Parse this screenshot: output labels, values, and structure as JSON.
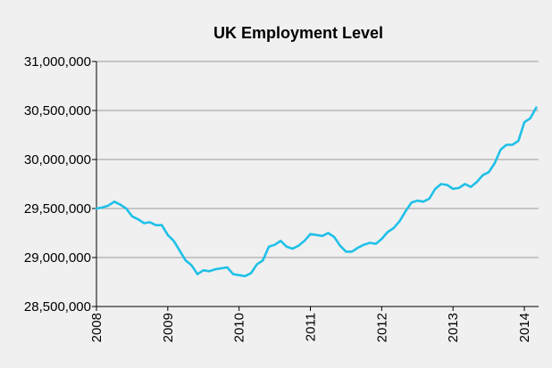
{
  "chart_data": {
    "type": "line",
    "title": "UK Employment Level",
    "xlabel": "",
    "ylabel": "",
    "x_ticks": [
      "2008",
      "2009",
      "2010",
      "2011",
      "2012",
      "2013",
      "2014"
    ],
    "y_ticks": [
      "28,500,000",
      "29,000,000",
      "29,500,000",
      "30,000,000",
      "30,500,000",
      "31,000,000"
    ],
    "xlim": [
      2008.0,
      2014.2
    ],
    "ylim": [
      28500000,
      31000000
    ],
    "grid": true,
    "legend": "none",
    "series_color": "#1fc0e8",
    "series": [
      {
        "x": [
          2008.0,
          2008.083,
          2008.167,
          2008.25,
          2008.333,
          2008.417,
          2008.5,
          2008.583,
          2008.667,
          2008.75,
          2008.833,
          2008.917,
          2009.0,
          2009.083,
          2009.167,
          2009.25,
          2009.333,
          2009.417,
          2009.5,
          2009.583,
          2009.667,
          2009.75,
          2009.833,
          2009.917,
          2010.0,
          2010.083,
          2010.167,
          2010.25,
          2010.333,
          2010.417,
          2010.5,
          2010.583,
          2010.667,
          2010.75,
          2010.833,
          2010.917,
          2011.0,
          2011.083,
          2011.167,
          2011.25,
          2011.333,
          2011.417,
          2011.5,
          2011.583,
          2011.667,
          2011.75,
          2011.833,
          2011.917,
          2012.0,
          2012.083,
          2012.167,
          2012.25,
          2012.333,
          2012.417,
          2012.5,
          2012.583,
          2012.667,
          2012.75,
          2012.833,
          2012.917,
          2013.0,
          2013.083,
          2013.167,
          2013.25,
          2013.333,
          2013.417,
          2013.5,
          2013.583,
          2013.667,
          2013.75,
          2013.833,
          2013.917,
          2014.0,
          2014.083,
          2014.167
        ],
        "values": [
          29500000,
          29510000,
          29530000,
          29570000,
          29540000,
          29500000,
          29420000,
          29390000,
          29350000,
          29360000,
          29330000,
          29330000,
          29230000,
          29170000,
          29070000,
          28970000,
          28920000,
          28830000,
          28870000,
          28860000,
          28880000,
          28890000,
          28900000,
          28830000,
          28820000,
          28810000,
          28840000,
          28930000,
          28970000,
          29110000,
          29130000,
          29170000,
          29110000,
          29090000,
          29120000,
          29170000,
          29240000,
          29230000,
          29220000,
          29250000,
          29210000,
          29120000,
          29060000,
          29060000,
          29100000,
          29130000,
          29150000,
          29140000,
          29190000,
          29260000,
          29300000,
          29370000,
          29470000,
          29560000,
          29580000,
          29570000,
          29600000,
          29700000,
          29750000,
          29740000,
          29700000,
          29710000,
          29750000,
          29720000,
          29770000,
          29840000,
          29870000,
          29960000,
          30100000,
          30150000,
          30150000,
          30190000,
          30380000,
          30420000,
          30530000
        ]
      }
    ]
  }
}
